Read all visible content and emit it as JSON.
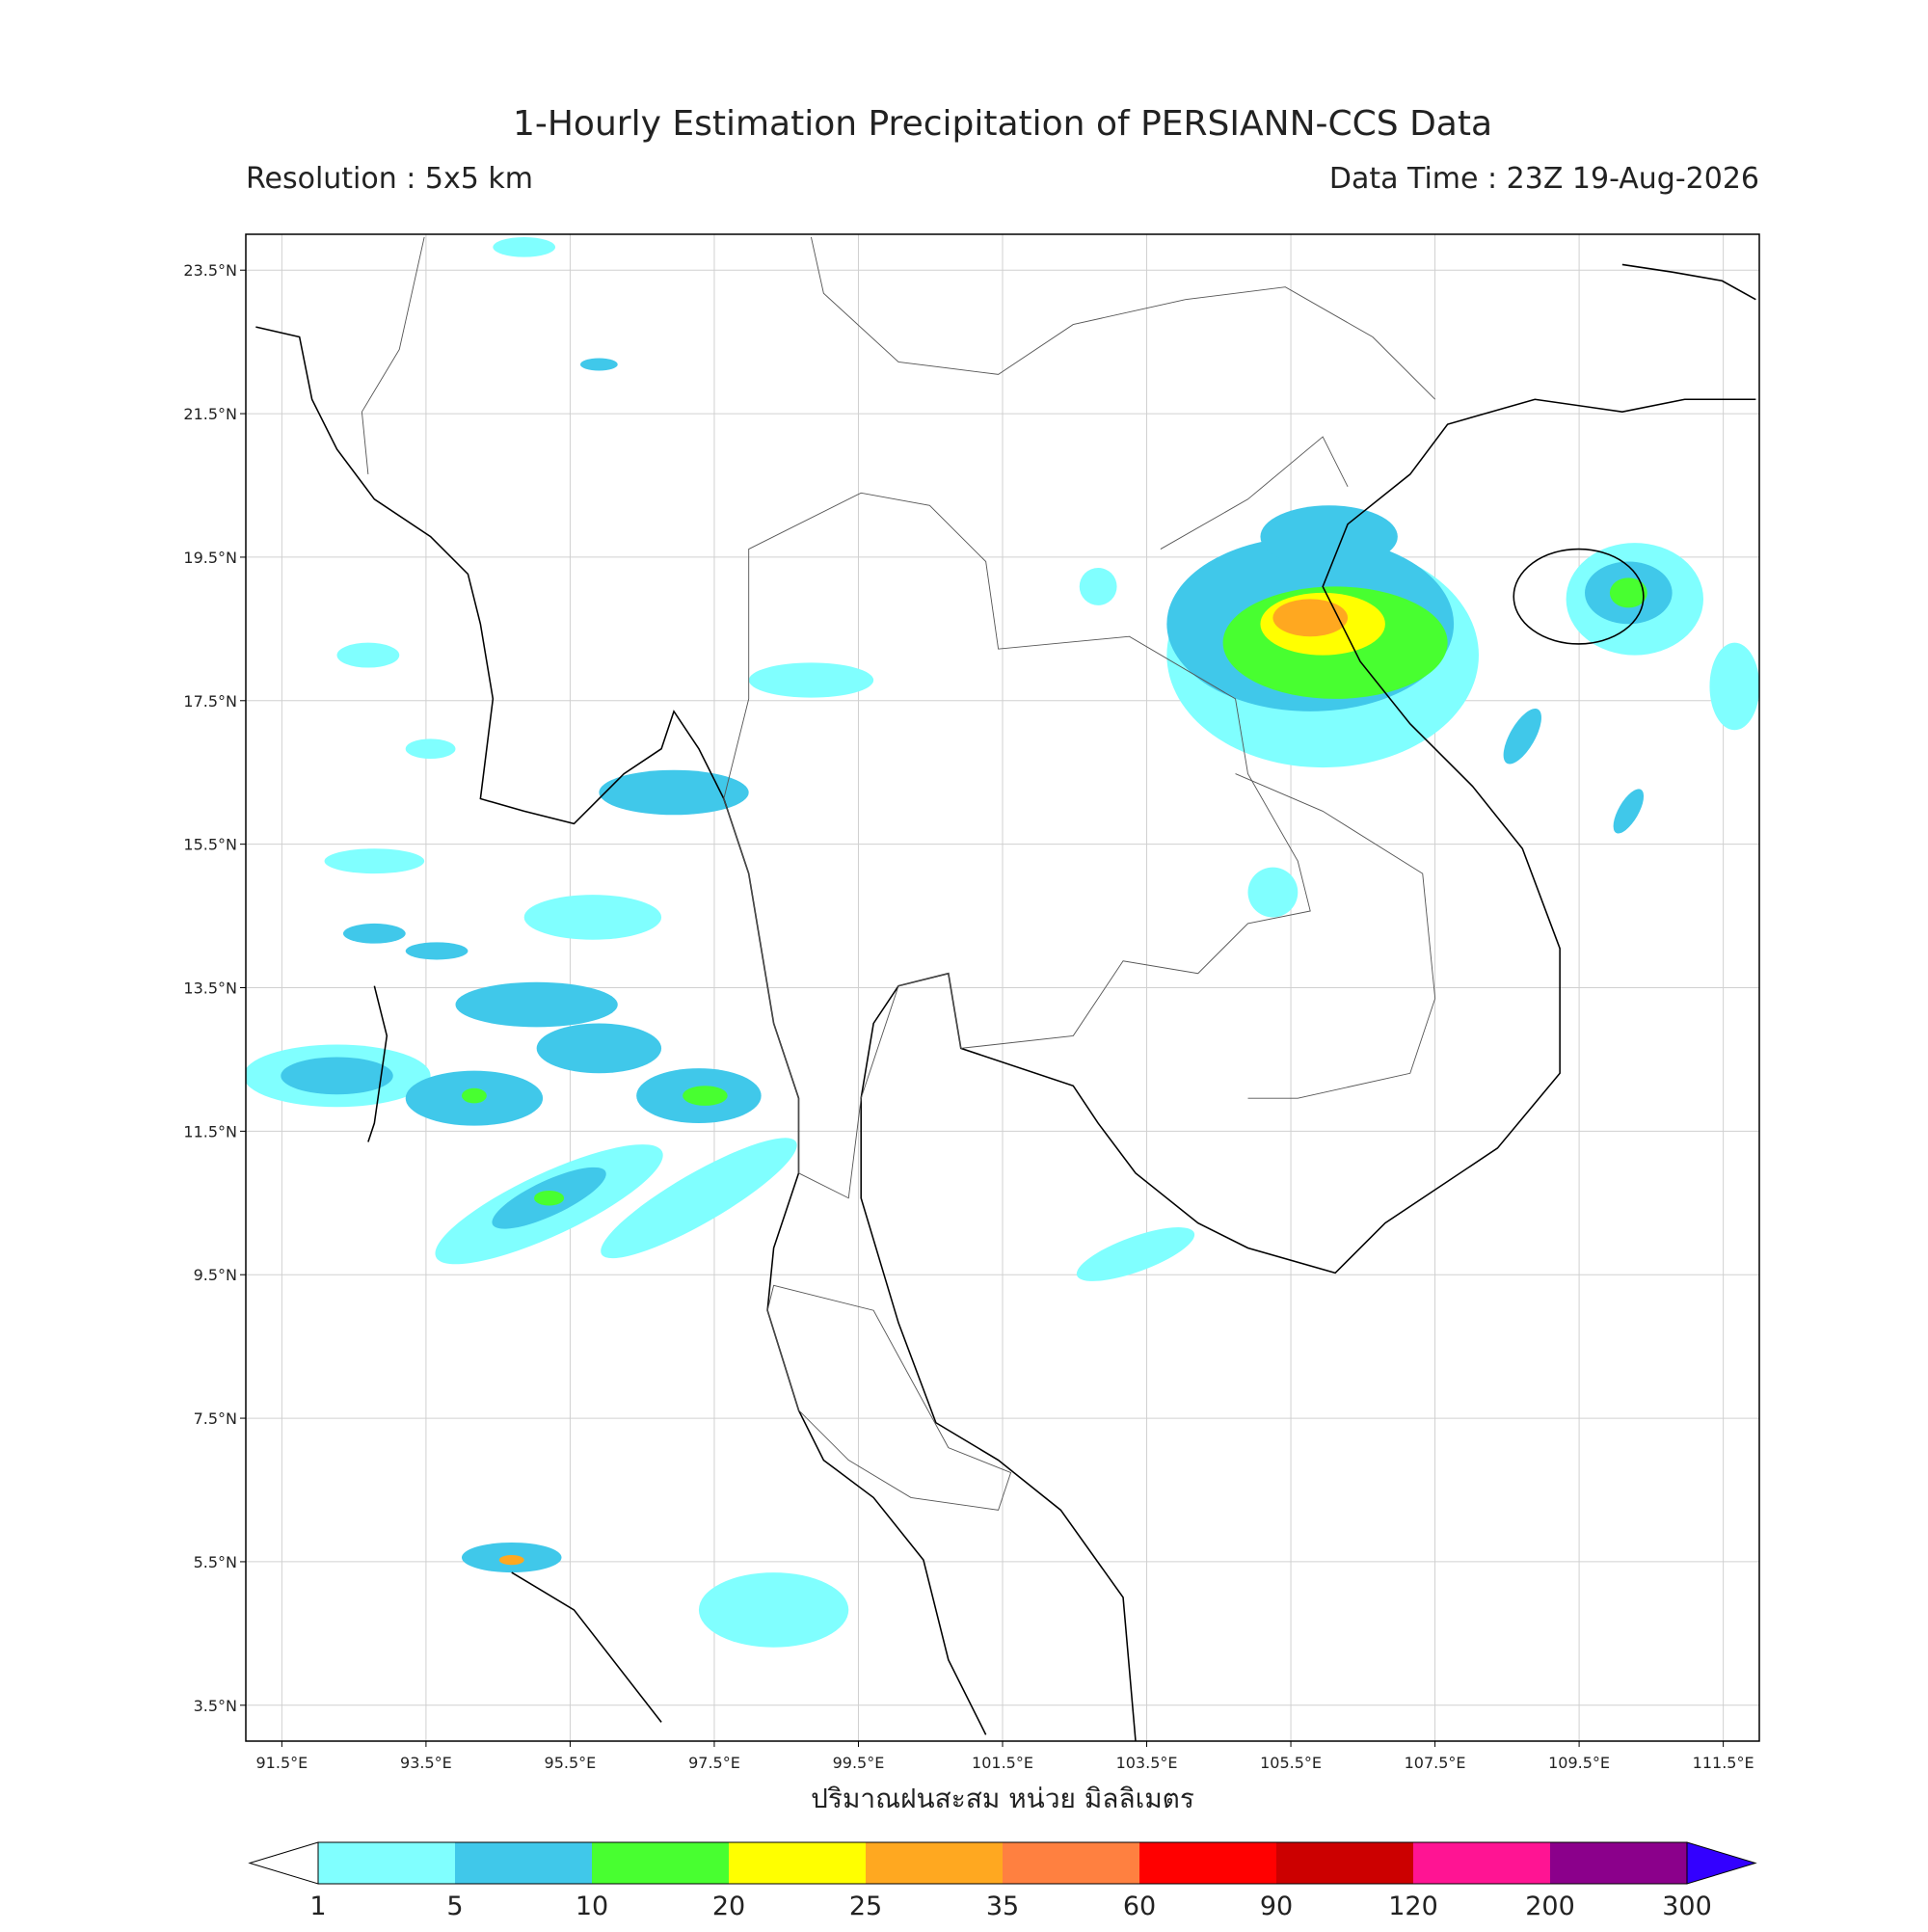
{
  "header": {
    "title": "1-Hourly Estimation Precipitation of PERSIANN-CCS Data",
    "resolution": "Resolution : 5x5 km",
    "data_time": "Data Time : 23Z 19-Aug-2026"
  },
  "map": {
    "lon_range": [
      91,
      112
    ],
    "lat_range": [
      3,
      24
    ],
    "grid": true,
    "lon_ticks": [
      {
        "value": 91.5,
        "label": "91.5°E"
      },
      {
        "value": 93.5,
        "label": "93.5°E"
      },
      {
        "value": 95.5,
        "label": "95.5°E"
      },
      {
        "value": 97.5,
        "label": "97.5°E"
      },
      {
        "value": 99.5,
        "label": "99.5°E"
      },
      {
        "value": 101.5,
        "label": "101.5°E"
      },
      {
        "value": 103.5,
        "label": "103.5°E"
      },
      {
        "value": 105.5,
        "label": "105.5°E"
      },
      {
        "value": 107.5,
        "label": "107.5°E"
      },
      {
        "value": 109.5,
        "label": "109.5°E"
      },
      {
        "value": 111.5,
        "label": "111.5°E"
      }
    ],
    "lat_ticks": [
      {
        "value": 23.5,
        "label": "23.5°N"
      },
      {
        "value": 21.5,
        "label": "21.5°N"
      },
      {
        "value": 19.5,
        "label": "19.5°N"
      },
      {
        "value": 17.5,
        "label": "17.5°N"
      },
      {
        "value": 15.5,
        "label": "15.5°N"
      },
      {
        "value": 13.5,
        "label": "13.5°N"
      },
      {
        "value": 11.5,
        "label": "11.5°N"
      },
      {
        "value": 9.5,
        "label": "9.5°N"
      },
      {
        "value": 7.5,
        "label": "7.5°N"
      },
      {
        "value": 5.5,
        "label": "5.5°N"
      },
      {
        "value": 3.5,
        "label": "3.5°N"
      }
    ],
    "xlabel": "ปริมาณฝนสะสม หน่วย มิลลิเมตร"
  },
  "colorbar": {
    "levels": [
      1,
      5,
      10,
      20,
      25,
      35,
      60,
      90,
      120,
      200,
      300
    ],
    "colors": [
      "#80ffff",
      "#40c8ea",
      "#48ff30",
      "#ffff00",
      "#ffa820",
      "#ff8040",
      "#ff0000",
      "#cc0000",
      "#ff1493",
      "#8b008b"
    ],
    "under_color": "#ffffff",
    "over_color": "#3300ff"
  }
}
